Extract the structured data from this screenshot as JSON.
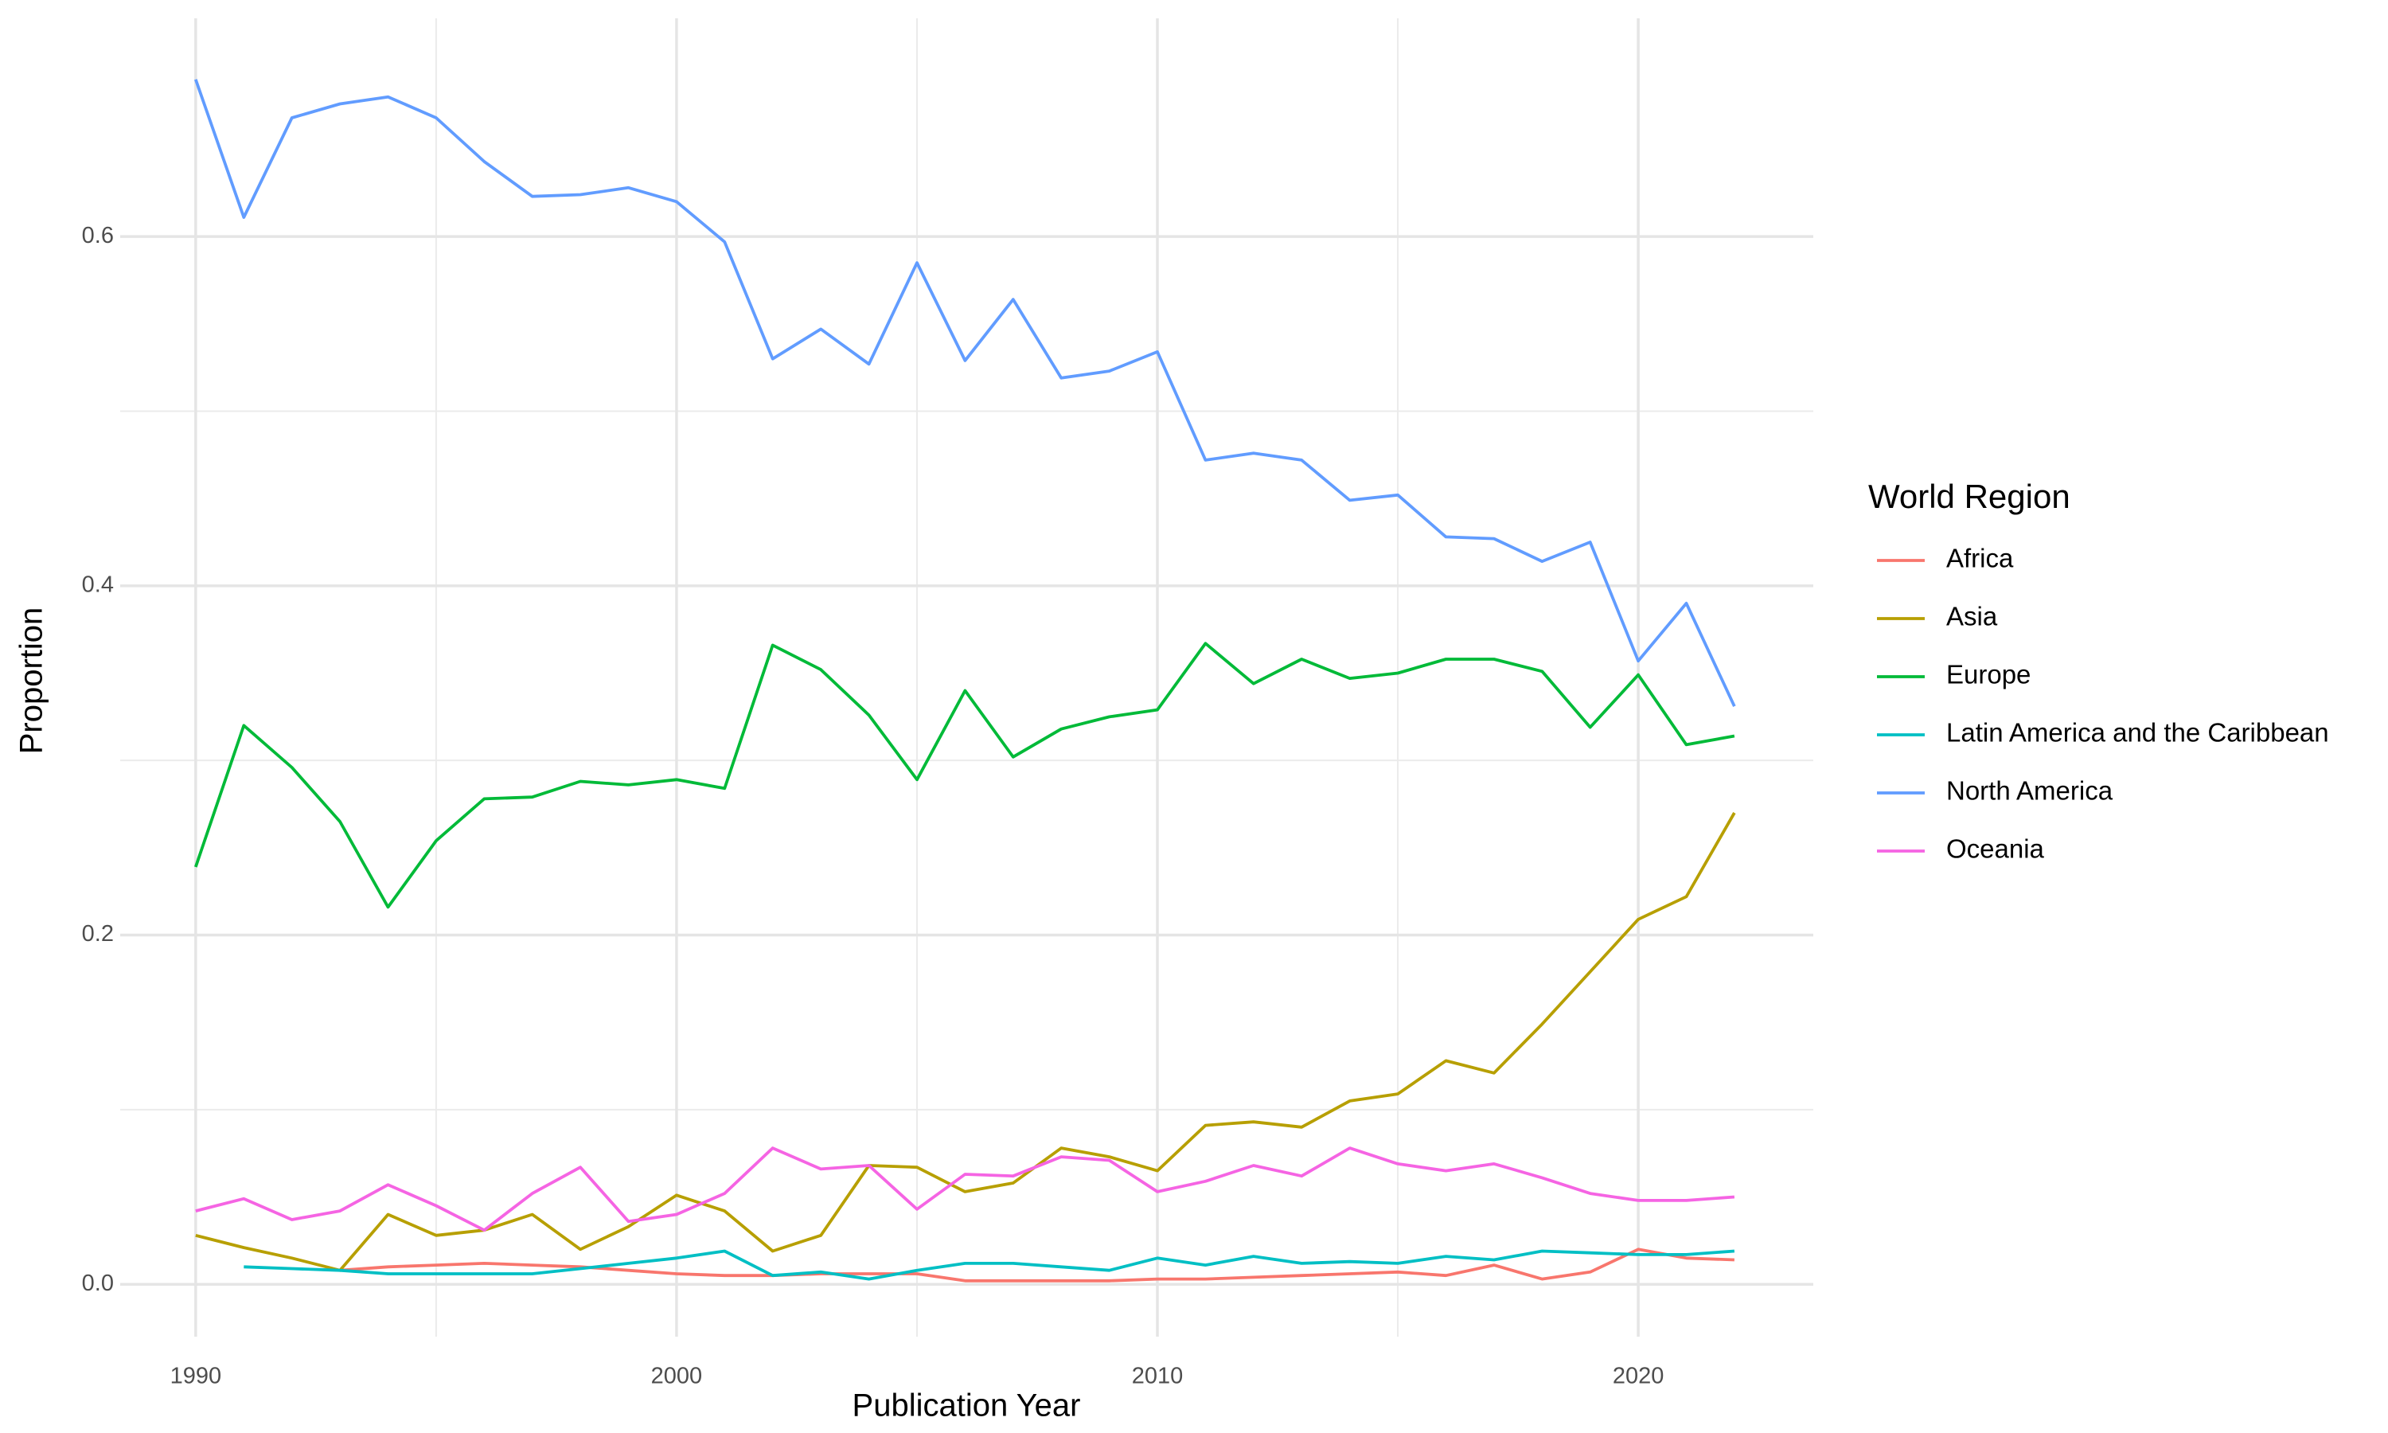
{
  "chart_data": {
    "type": "line",
    "x_label": "Publication Year",
    "y_label": "Proportion",
    "legend_title": "World Region",
    "x": [
      1990,
      1991,
      1992,
      1993,
      1994,
      1995,
      1996,
      1997,
      1998,
      1999,
      2000,
      2001,
      2002,
      2003,
      2004,
      2005,
      2006,
      2007,
      2008,
      2009,
      2010,
      2011,
      2012,
      2013,
      2014,
      2015,
      2016,
      2017,
      2018,
      2019,
      2020,
      2021,
      2022
    ],
    "xlim": [
      1988.43,
      2023.64
    ],
    "ylim": [
      -0.03,
      0.725
    ],
    "xticks": [
      1990,
      2000,
      2010,
      2020
    ],
    "xminor": [
      1995,
      2005,
      2015
    ],
    "yticks": [
      {
        "value": 0,
        "label": "0.0"
      },
      0.2,
      0.4,
      0.6
    ],
    "yminor": [
      0.1,
      0.3,
      0.5
    ],
    "grid": true,
    "legend": "right",
    "series": [
      {
        "name": "Africa",
        "color": "#F8766D",
        "values": [
          null,
          null,
          null,
          0.008,
          0.01,
          0.011,
          0.012,
          0.011,
          0.01,
          0.008,
          0.006,
          0.005,
          0.005,
          0.006,
          0.006,
          0.006,
          0.002,
          0.002,
          0.002,
          0.002,
          0.003,
          0.003,
          0.004,
          0.005,
          0.006,
          0.007,
          0.005,
          0.011,
          0.003,
          0.007,
          0.02,
          0.015,
          0.014
        ]
      },
      {
        "name": "Asia",
        "color": "#B79F00",
        "values": [
          0.028,
          0.021,
          0.015,
          0.008,
          0.04,
          0.028,
          0.031,
          0.04,
          0.02,
          0.033,
          0.051,
          0.042,
          0.019,
          0.028,
          0.068,
          0.067,
          0.053,
          0.058,
          0.078,
          0.073,
          0.065,
          0.091,
          0.093,
          0.09,
          0.105,
          0.109,
          0.128,
          0.121,
          0.149,
          0.179,
          0.209,
          0.222,
          0.27
        ]
      },
      {
        "name": "Europe",
        "color": "#00BA38",
        "values": [
          0.239,
          0.32,
          0.296,
          0.265,
          0.216,
          0.254,
          0.278,
          0.279,
          0.288,
          0.286,
          0.289,
          0.284,
          0.366,
          0.352,
          0.326,
          0.289,
          0.34,
          0.302,
          0.318,
          0.325,
          0.329,
          0.367,
          0.344,
          0.358,
          0.347,
          0.35,
          0.358,
          0.358,
          0.351,
          0.319,
          0.349,
          0.309,
          0.314
        ]
      },
      {
        "name": "Latin America and the Caribbean",
        "color": "#00BFC4",
        "values": [
          null,
          0.01,
          0.009,
          0.008,
          0.006,
          0.006,
          0.006,
          0.006,
          0.009,
          0.012,
          0.015,
          0.019,
          0.005,
          0.007,
          0.003,
          0.008,
          0.012,
          0.012,
          0.01,
          0.008,
          0.015,
          0.011,
          0.016,
          0.012,
          0.013,
          0.012,
          0.016,
          0.014,
          0.019,
          0.018,
          0.017,
          0.017,
          0.019
        ]
      },
      {
        "name": "North America",
        "color": "#619CFF",
        "values": [
          0.69,
          0.611,
          0.668,
          0.676,
          0.68,
          0.668,
          0.643,
          0.623,
          0.624,
          0.628,
          0.62,
          0.597,
          0.53,
          0.547,
          0.527,
          0.585,
          0.529,
          0.564,
          0.519,
          0.523,
          0.534,
          0.472,
          0.476,
          0.472,
          0.449,
          0.452,
          0.428,
          0.427,
          0.414,
          0.425,
          0.357,
          0.39,
          0.331
        ]
      },
      {
        "name": "Oceania",
        "color": "#F564E3",
        "values": [
          0.042,
          0.049,
          0.037,
          0.042,
          0.057,
          0.045,
          0.031,
          0.052,
          0.067,
          0.036,
          0.04,
          0.052,
          0.078,
          0.066,
          0.068,
          0.043,
          0.063,
          0.062,
          0.073,
          0.071,
          0.053,
          0.059,
          0.068,
          0.062,
          0.078,
          0.069,
          0.065,
          0.069,
          0.061,
          0.052,
          0.048,
          0.048,
          0.05
        ]
      }
    ]
  }
}
